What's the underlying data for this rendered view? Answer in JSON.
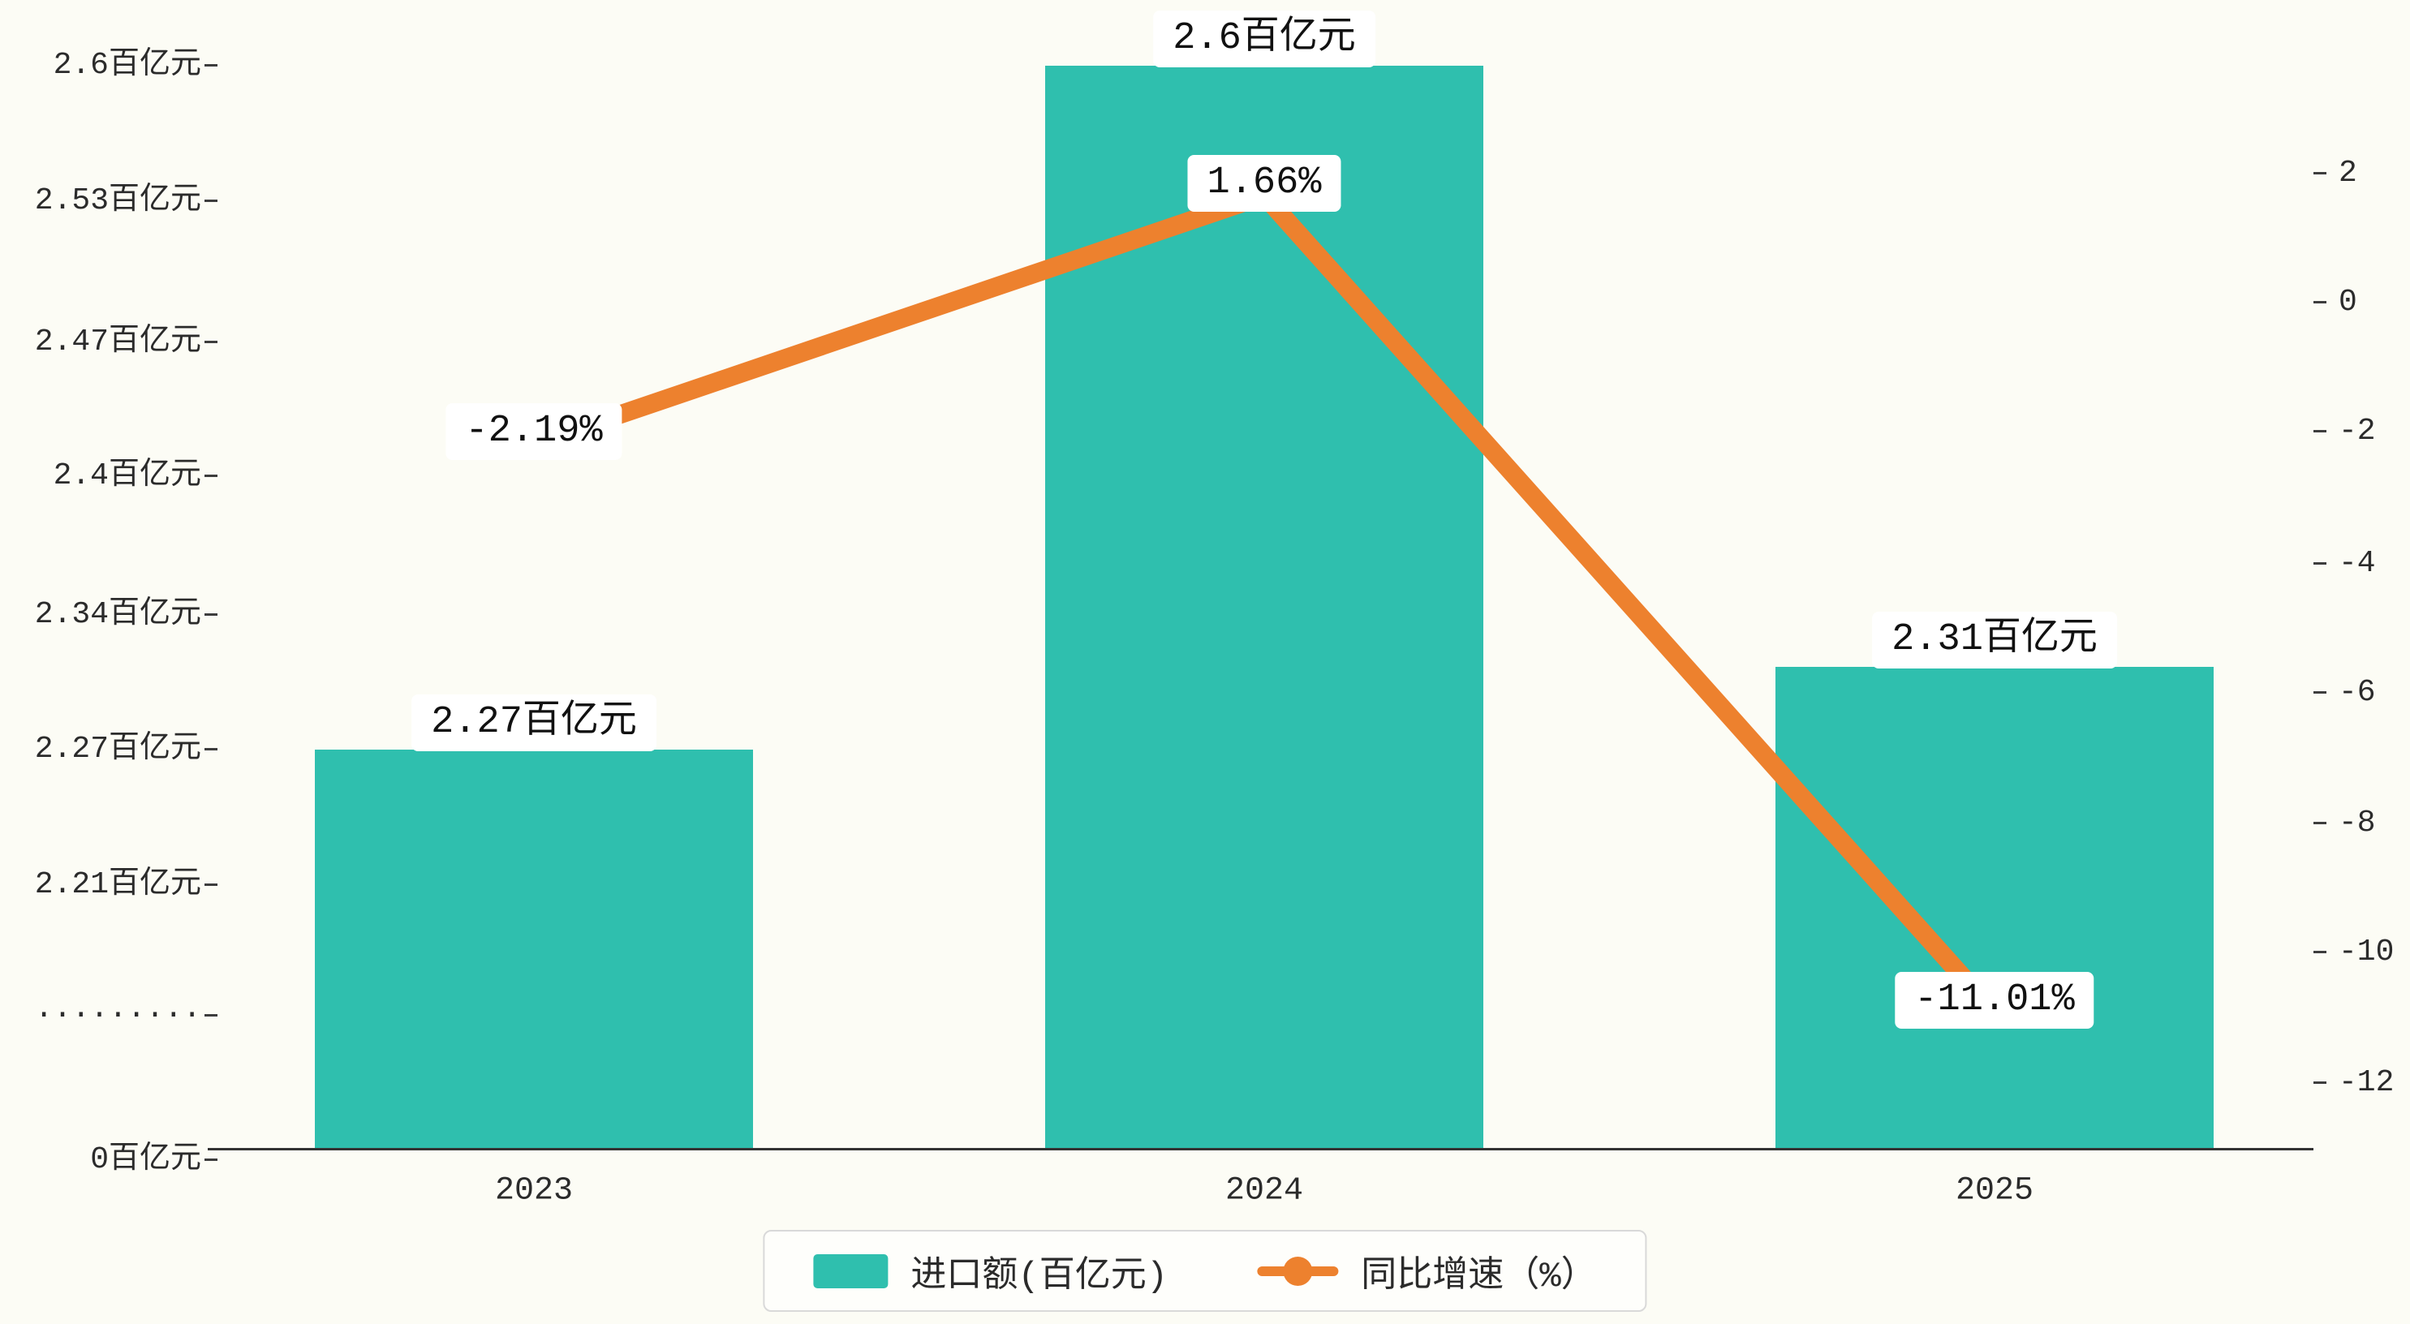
{
  "colors": {
    "background": "#fcfcf5",
    "bar": "#2fbfae",
    "line": "#ed812e",
    "axis": "#333333",
    "label_background": "#ffffff"
  },
  "chart_data": {
    "type": "bar",
    "subtype": "bar-with-line-overlay",
    "title": "",
    "categories": [
      "2023",
      "2024",
      "2025"
    ],
    "series": [
      {
        "name": "进口额(百亿元)",
        "type": "bar",
        "axis": "left",
        "values": [
          2.27,
          2.6,
          2.31
        ],
        "labels": [
          "2.27百亿元",
          "2.6百亿元",
          "2.31百亿元"
        ],
        "color": "#2fbfae"
      },
      {
        "name": "同比增速（%）",
        "type": "line",
        "axis": "right",
        "values": [
          -2.19,
          1.66,
          -11.01
        ],
        "labels": [
          "-2.19%",
          "1.66%",
          "-11.01%"
        ],
        "color": "#ed812e"
      }
    ],
    "left_axis": {
      "unit": "百亿元",
      "has_break": true,
      "ticks": [
        "2.6百亿元",
        "2.53百亿元",
        "2.47百亿元",
        "2.4百亿元",
        "2.34百亿元",
        "2.27百亿元",
        "2.21百亿元",
        "·········",
        "0百亿元"
      ]
    },
    "right_axis": {
      "unit": "%",
      "ticks": [
        "2",
        "0",
        "-2",
        "-4",
        "-6",
        "-8",
        "-10",
        "-12"
      ],
      "range": [
        -13,
        2.5
      ]
    },
    "grid": false,
    "legend_position": "bottom-center",
    "legend": [
      {
        "label": "进口额(百亿元)",
        "marker": "bar-swatch"
      },
      {
        "label": "同比增速（%）",
        "marker": "line-dot"
      }
    ]
  }
}
